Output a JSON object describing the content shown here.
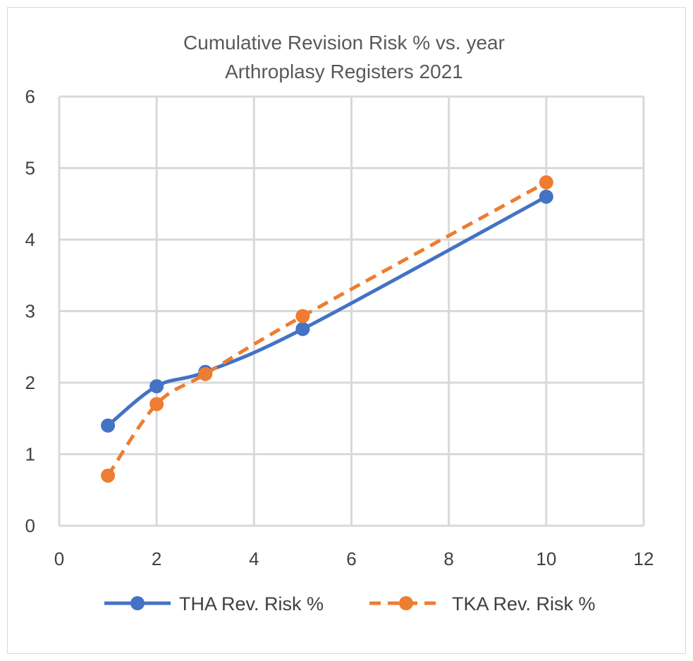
{
  "chart_data": {
    "type": "scatter",
    "title": "Cumulative Revision Risk % vs. year",
    "subtitle": "Arthroplasy Registers 2021",
    "xlabel": "",
    "ylabel": "",
    "xlim": [
      0,
      12
    ],
    "ylim": [
      0,
      6
    ],
    "xticks": [
      "0",
      "2",
      "4",
      "6",
      "8",
      "10",
      "12"
    ],
    "yticks": [
      "0",
      "1",
      "2",
      "3",
      "4",
      "5",
      "6"
    ],
    "grid": true,
    "legend_position": "bottom",
    "series": [
      {
        "name": "THA Rev. Risk %",
        "color": "#4472c4",
        "line_style": "solid-smooth",
        "x": [
          1,
          2,
          3,
          5,
          10
        ],
        "y": [
          1.4,
          1.95,
          2.15,
          2.75,
          4.6
        ]
      },
      {
        "name": "TKA Rev. Risk %",
        "color": "#ed7d31",
        "line_style": "dashed-smooth",
        "x": [
          1,
          2,
          3,
          5,
          10
        ],
        "y": [
          0.7,
          1.7,
          2.12,
          2.93,
          4.8
        ]
      }
    ]
  }
}
